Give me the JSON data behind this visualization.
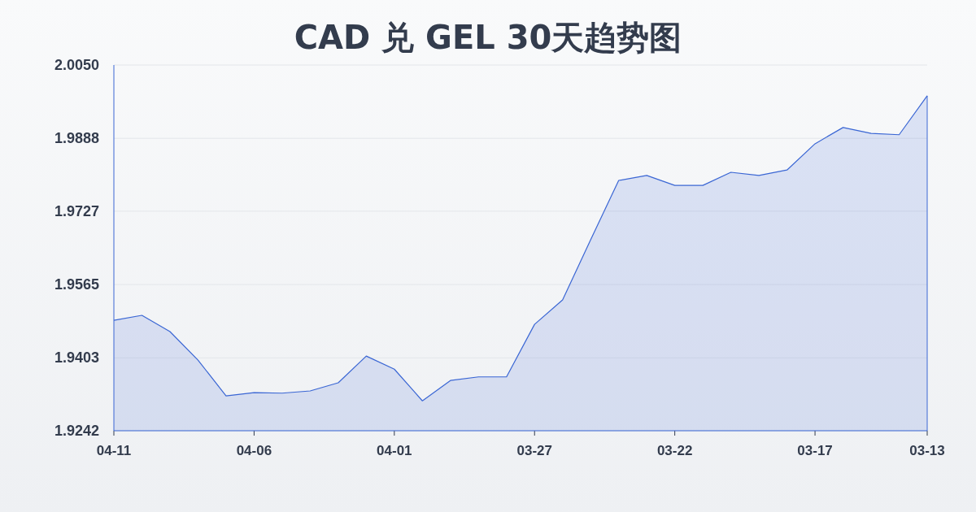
{
  "chart_data": {
    "type": "area",
    "title": "CAD 兑 GEL 30天趋势图",
    "categories": [
      "04-11",
      null,
      null,
      null,
      null,
      "04-06",
      null,
      null,
      null,
      null,
      "04-01",
      null,
      null,
      null,
      null,
      "03-27",
      null,
      null,
      null,
      null,
      "03-22",
      null,
      null,
      null,
      null,
      "03-17",
      null,
      null,
      null,
      "03-13"
    ],
    "series": [
      {
        "color": "#3a66d4",
        "values": [
          1.9486,
          1.9497,
          1.9461,
          1.9398,
          1.9319,
          1.9326,
          1.9325,
          1.933,
          1.9348,
          1.9407,
          1.9378,
          1.9308,
          1.9353,
          1.9361,
          1.9361,
          1.9477,
          1.9531,
          1.9664,
          1.9795,
          1.9806,
          1.9784,
          1.9784,
          1.9813,
          1.9806,
          1.9818,
          1.9876,
          1.9912,
          1.9899,
          1.9896,
          1.9982
        ]
      }
    ],
    "ylim": [
      1.9242,
      2.005
    ],
    "yticks": [
      1.9242,
      1.9403,
      1.9565,
      1.9727,
      1.9888,
      {
        "value": 2.005,
        "label": "2.0050"
      }
    ],
    "grid": "y"
  }
}
